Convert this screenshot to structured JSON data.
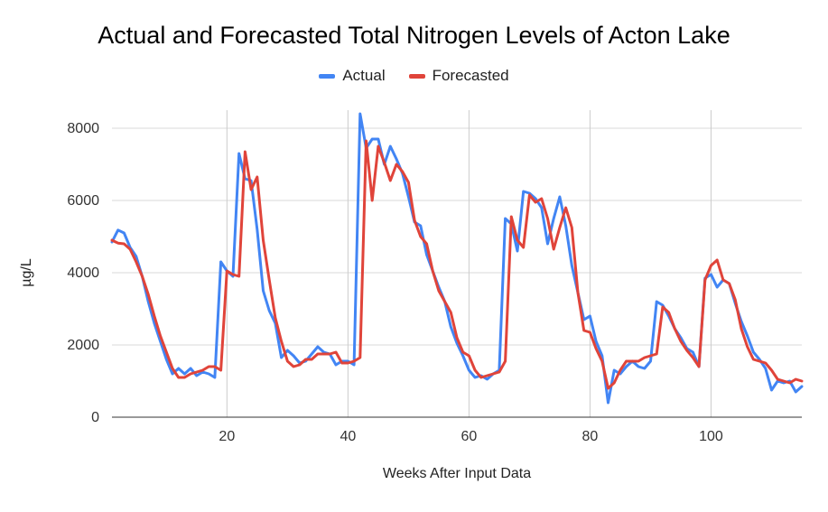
{
  "chart_data": {
    "type": "line",
    "title": "Actual and Forecasted Total Nitrogen Levels of Acton Lake",
    "xlabel": "Weeks After Input Data",
    "ylabel": "µg/L",
    "xlim": [
      1,
      115
    ],
    "ylim": [
      0,
      8000
    ],
    "x_ticks": [
      20,
      40,
      60,
      80,
      100
    ],
    "y_ticks": [
      0,
      2000,
      4000,
      6000,
      8000
    ],
    "grid": {
      "vertical": true,
      "horizontal": true
    },
    "legend_position": "top",
    "series": [
      {
        "name": "Actual",
        "color": "#4285f4",
        "x": [
          1,
          2,
          3,
          4,
          5,
          6,
          7,
          8,
          9,
          10,
          11,
          12,
          13,
          14,
          15,
          16,
          17,
          18,
          19,
          20,
          21,
          22,
          23,
          24,
          25,
          26,
          27,
          28,
          29,
          30,
          31,
          32,
          33,
          34,
          35,
          36,
          37,
          38,
          39,
          40,
          41,
          42,
          43,
          44,
          45,
          46,
          47,
          48,
          49,
          50,
          51,
          52,
          53,
          54,
          55,
          56,
          57,
          58,
          59,
          60,
          61,
          62,
          63,
          64,
          65,
          66,
          67,
          68,
          69,
          70,
          71,
          72,
          73,
          74,
          75,
          76,
          77,
          78,
          79,
          80,
          81,
          82,
          83,
          84,
          85,
          86,
          87,
          88,
          89,
          90,
          91,
          92,
          93,
          94,
          95,
          96,
          97,
          98,
          99,
          100,
          101,
          102,
          103,
          104,
          105,
          106,
          107,
          108,
          109,
          110,
          111,
          112,
          113,
          114,
          115
        ],
        "y": [
          4850,
          5180,
          5100,
          4700,
          4450,
          3900,
          3200,
          2600,
          2100,
          1600,
          1200,
          1350,
          1200,
          1350,
          1150,
          1250,
          1200,
          1100,
          4300,
          4050,
          3900,
          7300,
          6600,
          6550,
          5200,
          3500,
          2950,
          2600,
          1650,
          1850,
          1700,
          1500,
          1550,
          1750,
          1950,
          1800,
          1750,
          1450,
          1550,
          1550,
          1450,
          8400,
          7450,
          7700,
          7700,
          7000,
          7500,
          7150,
          6750,
          6100,
          5400,
          5300,
          4500,
          4050,
          3600,
          3200,
          2500,
          2050,
          1700,
          1300,
          1100,
          1150,
          1050,
          1200,
          1300,
          5500,
          5350,
          4600,
          6250,
          6200,
          6050,
          5800,
          4800,
          5500,
          6100,
          5300,
          4200,
          3450,
          2700,
          2800,
          2100,
          1700,
          400,
          1300,
          1200,
          1400,
          1550,
          1400,
          1350,
          1550,
          3200,
          3100,
          2800,
          2450,
          2200,
          1900,
          1800,
          1400,
          3850,
          3950,
          3600,
          3800,
          3700,
          3150,
          2650,
          2250,
          1800,
          1600,
          1350,
          750,
          1000,
          950,
          1000,
          700,
          850
        ]
      },
      {
        "name": "Forecasted",
        "color": "#e0443a",
        "x": [
          1,
          2,
          3,
          4,
          5,
          6,
          7,
          8,
          9,
          10,
          11,
          12,
          13,
          14,
          15,
          16,
          17,
          18,
          19,
          20,
          21,
          22,
          23,
          24,
          25,
          26,
          27,
          28,
          29,
          30,
          31,
          32,
          33,
          34,
          35,
          36,
          37,
          38,
          39,
          40,
          41,
          42,
          43,
          44,
          45,
          46,
          47,
          48,
          49,
          50,
          51,
          52,
          53,
          54,
          55,
          56,
          57,
          58,
          59,
          60,
          61,
          62,
          63,
          64,
          65,
          66,
          67,
          68,
          69,
          70,
          71,
          72,
          73,
          74,
          75,
          76,
          77,
          78,
          79,
          80,
          81,
          82,
          83,
          84,
          85,
          86,
          87,
          88,
          89,
          90,
          91,
          92,
          93,
          94,
          95,
          96,
          97,
          98,
          99,
          100,
          101,
          102,
          103,
          104,
          105,
          106,
          107,
          108,
          109,
          110,
          111,
          112,
          113,
          114,
          115
        ],
        "y": [
          4900,
          4820,
          4800,
          4650,
          4300,
          3900,
          3400,
          2800,
          2250,
          1800,
          1350,
          1100,
          1100,
          1200,
          1250,
          1300,
          1400,
          1400,
          1300,
          4050,
          3950,
          3900,
          7350,
          6300,
          6650,
          4900,
          3800,
          2750,
          2100,
          1550,
          1400,
          1450,
          1600,
          1600,
          1750,
          1750,
          1750,
          1800,
          1500,
          1500,
          1550,
          1650,
          7650,
          6000,
          7500,
          7050,
          6550,
          7000,
          6800,
          6500,
          5450,
          5000,
          4800,
          4050,
          3500,
          3200,
          2900,
          2200,
          1800,
          1700,
          1300,
          1100,
          1150,
          1200,
          1250,
          1550,
          5550,
          4900,
          4700,
          6150,
          5950,
          6050,
          5500,
          4650,
          5250,
          5800,
          5250,
          3450,
          2400,
          2350,
          1900,
          1550,
          800,
          950,
          1300,
          1550,
          1550,
          1550,
          1650,
          1700,
          1750,
          3050,
          2900,
          2450,
          2100,
          1850,
          1650,
          1400,
          3800,
          4200,
          4350,
          3800,
          3700,
          3250,
          2450,
          1950,
          1600,
          1550,
          1500,
          1300,
          1050,
          1000,
          950,
          1050,
          1000
        ]
      }
    ]
  }
}
